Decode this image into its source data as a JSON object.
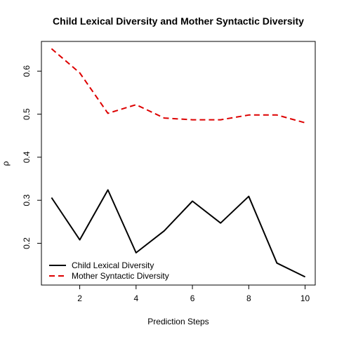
{
  "chart_data": {
    "type": "line",
    "title": "Child Lexical Diversity and Mother Syntactic Diversity",
    "xlabel": "Prediction Steps",
    "ylabel": "ρ",
    "xlim": [
      0.64,
      10.36
    ],
    "ylim": [
      0.103,
      0.669
    ],
    "x_ticks": [
      2,
      4,
      6,
      8,
      10
    ],
    "y_ticks": [
      0.2,
      0.3,
      0.4,
      0.5,
      0.6
    ],
    "grid": false,
    "legend_position": "bottom-left",
    "x": [
      1,
      2,
      3,
      4,
      5,
      6,
      7,
      8,
      9,
      10
    ],
    "series": [
      {
        "name": "Child Lexical Diversity",
        "color": "#000000",
        "dash": "solid",
        "values": [
          0.306,
          0.208,
          0.324,
          0.178,
          0.229,
          0.298,
          0.247,
          0.309,
          0.154,
          0.122
        ]
      },
      {
        "name": "Mother Syntactic Diversity",
        "color": "#dd0000",
        "dash": "dashed",
        "values": [
          0.652,
          0.596,
          0.502,
          0.522,
          0.491,
          0.487,
          0.487,
          0.498,
          0.498,
          0.48
        ]
      }
    ]
  }
}
